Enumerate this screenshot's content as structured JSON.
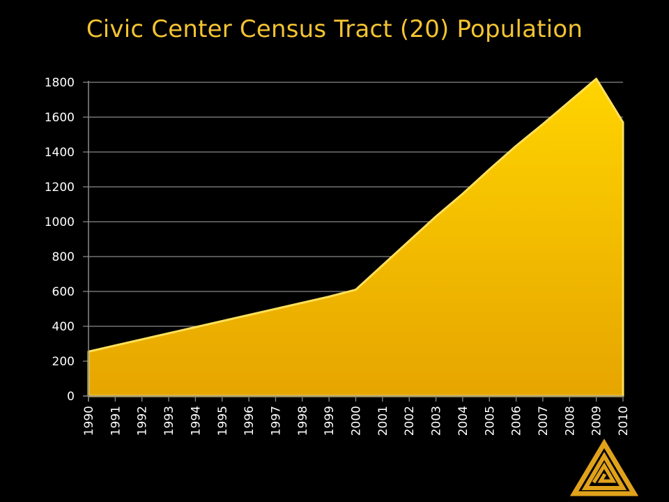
{
  "chart_data": {
    "type": "area",
    "title": "Civic Center Census Tract (20) Population",
    "xlabel": "",
    "ylabel": "",
    "x": [
      "1990",
      "1991",
      "1992",
      "1993",
      "1994",
      "1995",
      "1996",
      "1997",
      "1998",
      "1999",
      "2000",
      "2001",
      "2002",
      "2003",
      "2004",
      "2005",
      "2006",
      "2007",
      "2008",
      "2009",
      "2010"
    ],
    "y_ticks": [
      0,
      200,
      400,
      600,
      800,
      1000,
      1200,
      1400,
      1600,
      1800
    ],
    "ylim": [
      0,
      1800
    ],
    "grid": true,
    "legend": "none",
    "series": [
      {
        "values": [
          255,
          290,
          325,
          360,
          395,
          430,
          465,
          500,
          535,
          570,
          610,
          750,
          890,
          1030,
          1160,
          1300,
          1435,
          1560,
          1690,
          1820,
          1570
        ]
      }
    ],
    "colors": {
      "fill_top": "#ffd200",
      "fill_bottom": "#e3a600",
      "edge": "#ffe46a",
      "grid": "#8a8a8a",
      "title": "#f4c431",
      "logo": "#e0a21a"
    }
  }
}
